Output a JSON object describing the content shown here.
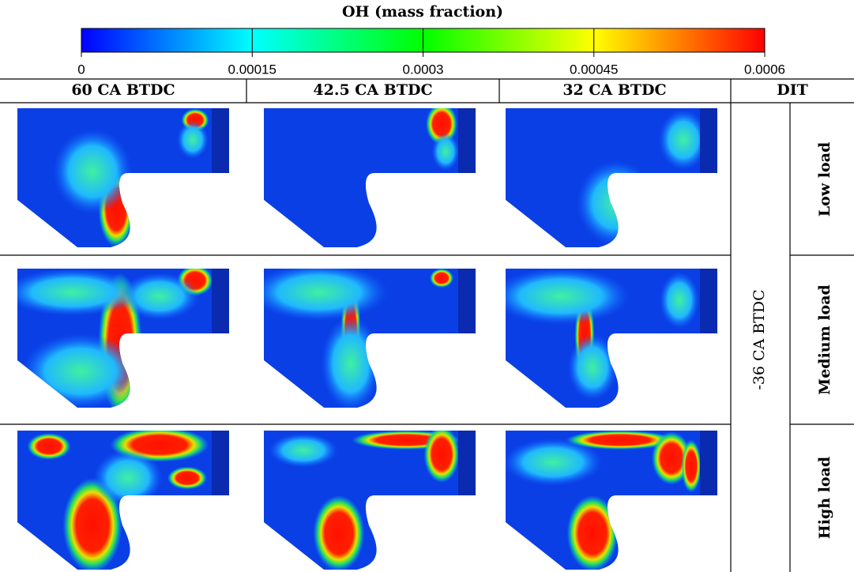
{
  "colorbar": {
    "title": "OH (mass fraction)",
    "ticks": [
      0,
      0.00015,
      0.0003,
      0.00045,
      0.0006
    ],
    "colors": [
      "#0000ff",
      "#00ffff",
      "#00ff00",
      "#ffff00",
      "#ff0000"
    ]
  },
  "table": {
    "headers": [
      "60 CA BTDC",
      "42.5 CA BTDC",
      "32 CA BTDC",
      "DIT"
    ],
    "dit": "-36 CA BTDC",
    "loads": [
      "Low load",
      "Medium load",
      "High load"
    ]
  }
}
